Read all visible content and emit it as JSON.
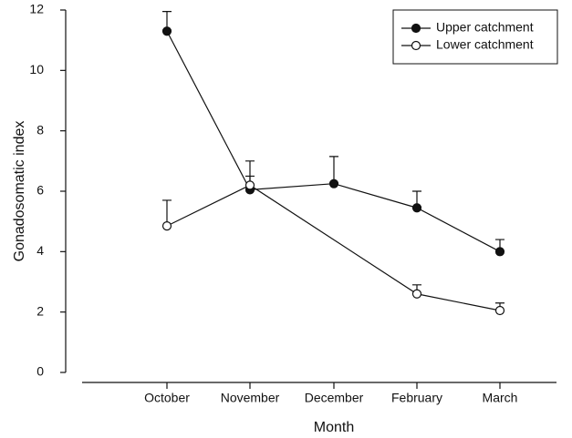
{
  "chart_data": {
    "type": "line",
    "x_label": "Month",
    "y_label": "Gonadosomatic index",
    "categories": [
      "October",
      "November",
      "December",
      "February",
      "March"
    ],
    "ylim": [
      0,
      12
    ],
    "yticks": [
      0,
      2,
      4,
      6,
      8,
      10,
      12
    ],
    "legend": "upper right",
    "series": [
      {
        "name": "Upper catchment",
        "color": "#111111",
        "marker": "filled",
        "values": [
          11.3,
          6.05,
          6.25,
          5.45,
          4.0
        ],
        "errors": [
          0.65,
          0.45,
          0.9,
          0.55,
          0.4
        ]
      },
      {
        "name": "Lower catchment",
        "color": "#111111",
        "marker": "open",
        "x": [
          "October",
          "November",
          "February",
          "March"
        ],
        "values": [
          4.85,
          6.2,
          2.6,
          2.05
        ],
        "errors": [
          0.85,
          0.8,
          0.3,
          0.25
        ]
      }
    ]
  }
}
